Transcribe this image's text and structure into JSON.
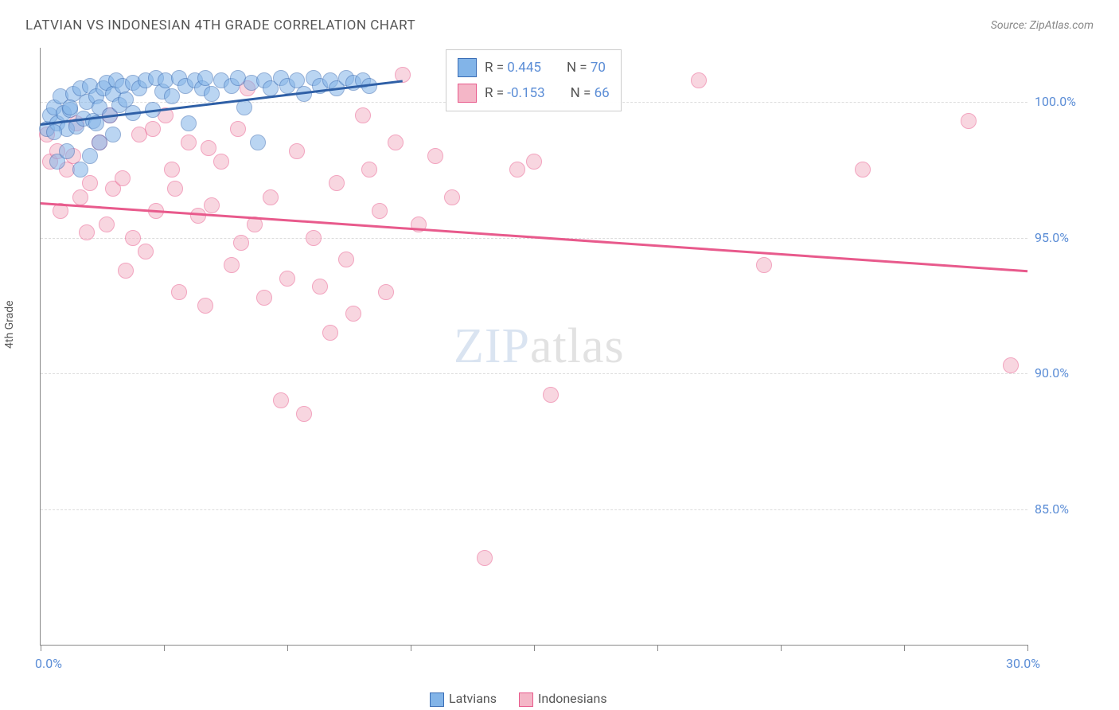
{
  "title": "LATVIAN VS INDONESIAN 4TH GRADE CORRELATION CHART",
  "source": "Source: ZipAtlas.com",
  "y_axis_label": "4th Grade",
  "watermark": {
    "part1": "ZIP",
    "part2": "atlas"
  },
  "chart": {
    "type": "scatter-with-trend",
    "xlim": [
      0,
      30
    ],
    "ylim": [
      80,
      102
    ],
    "y_ticks": [
      85.0,
      90.0,
      95.0,
      100.0
    ],
    "y_tick_labels": [
      "85.0%",
      "90.0%",
      "95.0%",
      "100.0%"
    ],
    "x_tick_positions": [
      0,
      3.75,
      7.5,
      11.25,
      15,
      18.75,
      22.5,
      26.25,
      30
    ],
    "x_start_label": "0.0%",
    "x_end_label": "30.0%",
    "background_color": "#ffffff",
    "grid_color": "#dddddd",
    "series": [
      {
        "name": "Latvians",
        "fill_color": "#82b4e8",
        "stroke_color": "#3a6db5",
        "trend_color": "#2e5fa6",
        "R": "0.445",
        "N": "70",
        "trend": {
          "x1": 0,
          "y1": 99.2,
          "x2": 11,
          "y2": 100.8
        },
        "points": [
          [
            0.2,
            99.0
          ],
          [
            0.3,
            99.5
          ],
          [
            0.4,
            99.8
          ],
          [
            0.5,
            99.2
          ],
          [
            0.6,
            100.2
          ],
          [
            0.7,
            99.6
          ],
          [
            0.8,
            99.0
          ],
          [
            0.9,
            99.7
          ],
          [
            1.0,
            100.3
          ],
          [
            1.1,
            99.1
          ],
          [
            1.2,
            100.5
          ],
          [
            1.3,
            99.4
          ],
          [
            1.4,
            100.0
          ],
          [
            1.5,
            100.6
          ],
          [
            1.6,
            99.3
          ],
          [
            1.7,
            100.2
          ],
          [
            1.8,
            99.8
          ],
          [
            1.9,
            100.5
          ],
          [
            2.0,
            100.7
          ],
          [
            2.1,
            99.5
          ],
          [
            2.2,
            100.3
          ],
          [
            2.3,
            100.8
          ],
          [
            2.4,
            99.9
          ],
          [
            2.5,
            100.6
          ],
          [
            2.6,
            100.1
          ],
          [
            2.8,
            100.7
          ],
          [
            3.0,
            100.5
          ],
          [
            3.2,
            100.8
          ],
          [
            3.4,
            99.7
          ],
          [
            3.5,
            100.9
          ],
          [
            3.7,
            100.4
          ],
          [
            3.8,
            100.8
          ],
          [
            4.0,
            100.2
          ],
          [
            4.2,
            100.9
          ],
          [
            4.4,
            100.6
          ],
          [
            4.5,
            99.2
          ],
          [
            4.7,
            100.8
          ],
          [
            4.9,
            100.5
          ],
          [
            5.0,
            100.9
          ],
          [
            5.2,
            100.3
          ],
          [
            5.5,
            100.8
          ],
          [
            5.8,
            100.6
          ],
          [
            6.0,
            100.9
          ],
          [
            6.2,
            99.8
          ],
          [
            6.4,
            100.7
          ],
          [
            6.6,
            98.5
          ],
          [
            6.8,
            100.8
          ],
          [
            7.0,
            100.5
          ],
          [
            7.3,
            100.9
          ],
          [
            7.5,
            100.6
          ],
          [
            7.8,
            100.8
          ],
          [
            8.0,
            100.3
          ],
          [
            8.3,
            100.9
          ],
          [
            8.5,
            100.6
          ],
          [
            8.8,
            100.8
          ],
          [
            9.0,
            100.5
          ],
          [
            9.3,
            100.9
          ],
          [
            9.5,
            100.7
          ],
          [
            9.8,
            100.8
          ],
          [
            10.0,
            100.6
          ],
          [
            0.5,
            97.8
          ],
          [
            0.8,
            98.2
          ],
          [
            1.2,
            97.5
          ],
          [
            1.5,
            98.0
          ],
          [
            1.8,
            98.5
          ],
          [
            2.2,
            98.8
          ],
          [
            0.4,
            98.9
          ],
          [
            0.9,
            99.8
          ],
          [
            1.7,
            99.2
          ],
          [
            2.8,
            99.6
          ]
        ]
      },
      {
        "name": "Indonesians",
        "fill_color": "#f4b6c7",
        "stroke_color": "#e85a8c",
        "trend_color": "#e85a8c",
        "R": "-0.153",
        "N": "66",
        "trend": {
          "x1": 0,
          "y1": 96.3,
          "x2": 30,
          "y2": 93.8
        },
        "points": [
          [
            0.3,
            97.8
          ],
          [
            0.5,
            98.2
          ],
          [
            0.8,
            97.5
          ],
          [
            1.0,
            98.0
          ],
          [
            1.2,
            96.5
          ],
          [
            1.5,
            97.0
          ],
          [
            1.8,
            98.5
          ],
          [
            2.0,
            95.5
          ],
          [
            2.2,
            96.8
          ],
          [
            2.5,
            97.2
          ],
          [
            2.8,
            95.0
          ],
          [
            3.0,
            98.8
          ],
          [
            3.2,
            94.5
          ],
          [
            3.5,
            96.0
          ],
          [
            3.8,
            99.5
          ],
          [
            4.0,
            97.5
          ],
          [
            4.2,
            93.0
          ],
          [
            4.5,
            98.5
          ],
          [
            4.8,
            95.8
          ],
          [
            5.0,
            92.5
          ],
          [
            5.2,
            96.2
          ],
          [
            5.5,
            97.8
          ],
          [
            5.8,
            94.0
          ],
          [
            6.0,
            99.0
          ],
          [
            6.3,
            100.5
          ],
          [
            6.5,
            95.5
          ],
          [
            6.8,
            92.8
          ],
          [
            7.0,
            96.5
          ],
          [
            7.3,
            89.0
          ],
          [
            7.5,
            93.5
          ],
          [
            7.8,
            98.2
          ],
          [
            8.0,
            88.5
          ],
          [
            8.3,
            95.0
          ],
          [
            8.5,
            93.2
          ],
          [
            8.8,
            91.5
          ],
          [
            9.0,
            97.0
          ],
          [
            9.3,
            94.2
          ],
          [
            9.5,
            92.2
          ],
          [
            9.8,
            99.5
          ],
          [
            10.0,
            97.5
          ],
          [
            10.3,
            96.0
          ],
          [
            10.5,
            93.0
          ],
          [
            10.8,
            98.5
          ],
          [
            11.0,
            101.0
          ],
          [
            11.5,
            95.5
          ],
          [
            12.0,
            98.0
          ],
          [
            12.5,
            96.5
          ],
          [
            13.5,
            83.2
          ],
          [
            14.5,
            97.5
          ],
          [
            15.0,
            97.8
          ],
          [
            15.5,
            89.2
          ],
          [
            20.0,
            100.8
          ],
          [
            22.0,
            94.0
          ],
          [
            25.0,
            97.5
          ],
          [
            28.2,
            99.3
          ],
          [
            29.5,
            90.3
          ],
          [
            0.2,
            98.8
          ],
          [
            0.6,
            96.0
          ],
          [
            1.1,
            99.2
          ],
          [
            1.4,
            95.2
          ],
          [
            2.1,
            99.5
          ],
          [
            2.6,
            93.8
          ],
          [
            3.4,
            99.0
          ],
          [
            4.1,
            96.8
          ],
          [
            5.1,
            98.3
          ],
          [
            6.1,
            94.8
          ]
        ]
      }
    ]
  },
  "legend": {
    "top_box": {
      "rows": [
        {
          "swatch_fill": "#82b4e8",
          "swatch_stroke": "#3a6db5",
          "r_label": "R = ",
          "r_val": "0.445",
          "n_label": "N = ",
          "n_val": "70"
        },
        {
          "swatch_fill": "#f4b6c7",
          "swatch_stroke": "#e85a8c",
          "r_label": "R = ",
          "r_val": "-0.153",
          "n_label": "N = ",
          "n_val": "66"
        }
      ]
    },
    "bottom": [
      {
        "swatch_fill": "#82b4e8",
        "swatch_stroke": "#3a6db5",
        "label": "Latvians"
      },
      {
        "swatch_fill": "#f4b6c7",
        "swatch_stroke": "#e85a8c",
        "label": "Indonesians"
      }
    ]
  }
}
